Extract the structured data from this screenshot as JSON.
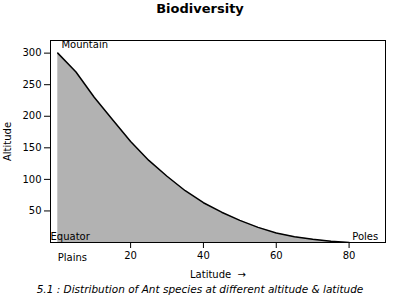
{
  "chart_data": {
    "type": "area",
    "title": "Biodiversity",
    "caption": "5.1 : Distribution of Ant species at different altitude & latitude",
    "x_label": "Latitude  →",
    "y_label": "Altitude",
    "x": [
      0,
      5,
      10,
      15,
      20,
      25,
      30,
      35,
      40,
      45,
      50,
      55,
      60,
      65,
      70,
      75,
      80
    ],
    "values": [
      300,
      270,
      230,
      195,
      160,
      130,
      105,
      82,
      63,
      48,
      35,
      24,
      15,
      9,
      5,
      2,
      0
    ],
    "xlim": [
      -2,
      90
    ],
    "ylim": [
      0,
      320
    ],
    "xticks": [
      20,
      40,
      60,
      80
    ],
    "yticks": [
      50,
      100,
      150,
      200,
      250,
      300
    ],
    "annotations": [
      {
        "text": "Plains",
        "x": 0,
        "y": -18
      },
      {
        "text": "Mountain",
        "x": 1,
        "y": 308
      },
      {
        "text": "Equator",
        "x": -2,
        "y": 4
      },
      {
        "text": "Poles",
        "x": 88,
        "y": 4
      }
    ]
  }
}
